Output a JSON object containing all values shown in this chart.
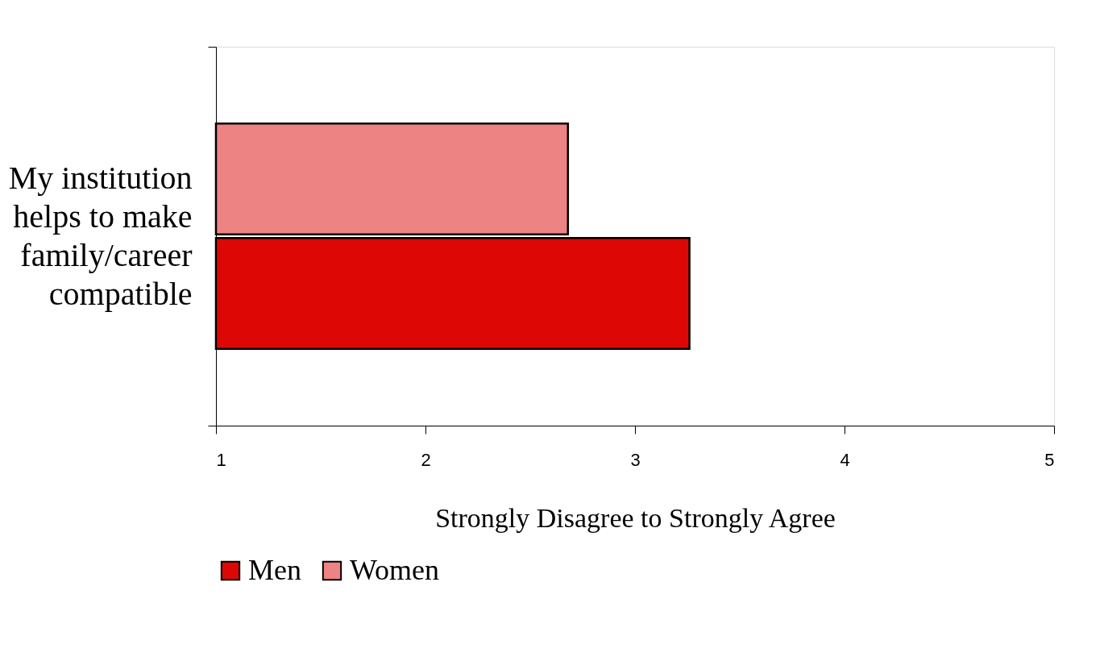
{
  "chart_data": {
    "type": "bar",
    "orientation": "horizontal",
    "categories": [
      "My institution helps to make family/career compatible"
    ],
    "series": [
      {
        "name": "Women",
        "color": "#ee8383",
        "values": [
          2.68
        ]
      },
      {
        "name": "Men",
        "color": "#dd0806",
        "values": [
          3.26
        ]
      }
    ],
    "xlim": [
      1,
      5
    ],
    "xticks": [
      1,
      2,
      3,
      4,
      5
    ],
    "xlabel": "Strongly Disagree to Strongly Agree",
    "grid": false,
    "legend": "bottom"
  }
}
